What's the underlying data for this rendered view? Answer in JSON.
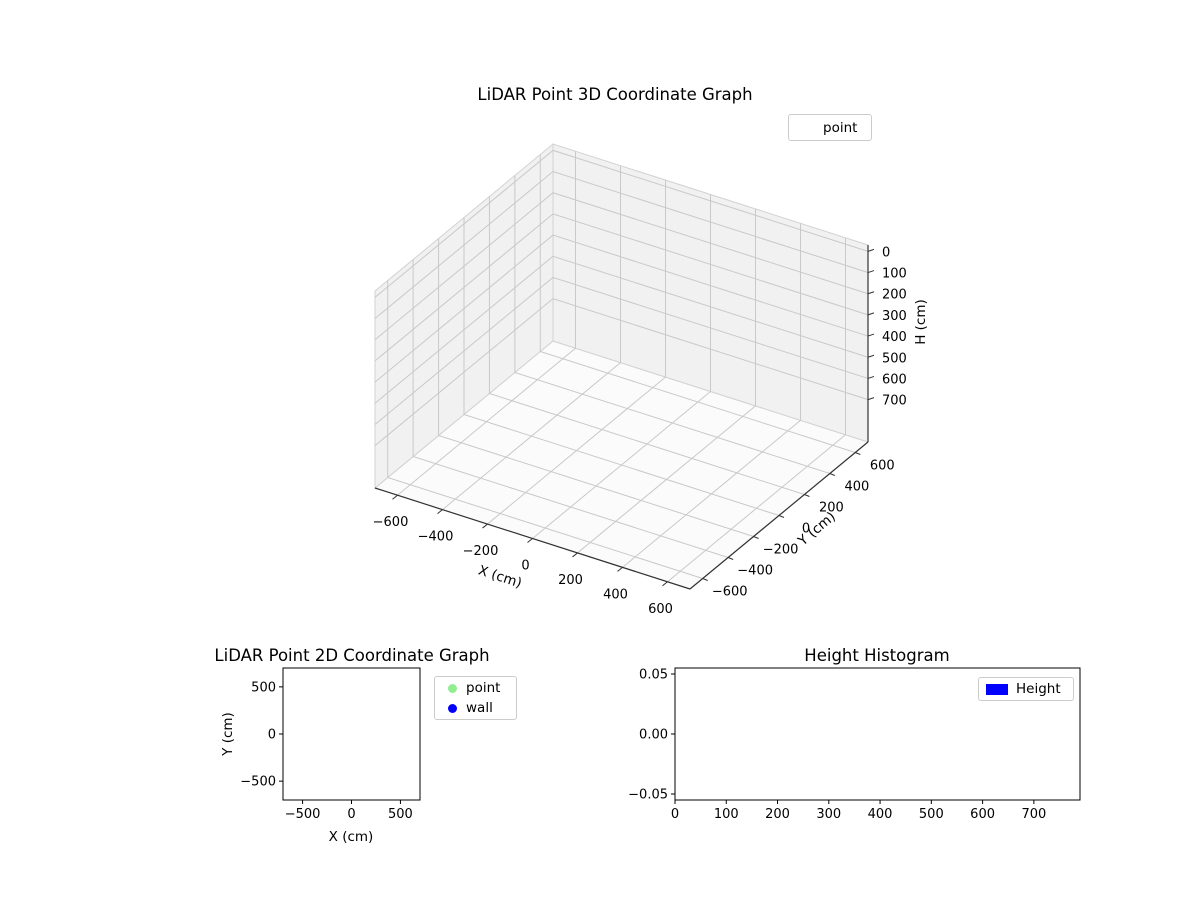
{
  "figure": {
    "background": "#ffffff",
    "grid_color": "#c9c9c9",
    "pane_color": "#f1f1f1",
    "floor_color": "#fbfbfb",
    "axis_color": "#333333"
  },
  "chart_data": [
    {
      "id": "plot3d",
      "type": "scatter3d",
      "title": "LiDAR Point 3D Coordinate Graph",
      "xlabel": "X (cm)",
      "ylabel": "Y (cm)",
      "zlabel": "H (cm)",
      "xlim": [
        -700,
        700
      ],
      "ylim": [
        -700,
        700
      ],
      "zlim": [
        -30,
        900
      ],
      "z_axis_inverted": true,
      "grid": true,
      "xticks": {
        "values": [
          -600,
          -400,
          -200,
          0,
          200,
          400,
          600
        ],
        "labels": [
          "−600",
          "−400",
          "−200",
          "0",
          "200",
          "400",
          "600"
        ]
      },
      "yticks": {
        "values": [
          -600,
          -400,
          -200,
          0,
          200,
          400,
          600
        ],
        "labels": [
          "−600",
          "−400",
          "−200",
          "0",
          "200",
          "400",
          "600"
        ]
      },
      "zticks": {
        "values": [
          0,
          100,
          200,
          300,
          400,
          500,
          600,
          700
        ],
        "labels": [
          "0",
          "100",
          "200",
          "300",
          "400",
          "500",
          "600",
          "700"
        ]
      },
      "legend": {
        "position": "upper-right",
        "entries": [
          {
            "label": "point",
            "marker": "none"
          }
        ]
      },
      "points": []
    },
    {
      "id": "plot2d",
      "type": "scatter",
      "title": "LiDAR Point 2D Coordinate Graph",
      "xlabel": "X (cm)",
      "ylabel": "Y (cm)",
      "xlim": [
        -700,
        700
      ],
      "ylim": [
        -700,
        700
      ],
      "grid": false,
      "xticks": {
        "values": [
          -500,
          0,
          500
        ],
        "labels": [
          "−500",
          "0",
          "500"
        ]
      },
      "yticks": {
        "values": [
          -500,
          0,
          500
        ],
        "labels": [
          "−500",
          "0",
          "500"
        ]
      },
      "legend": {
        "position": "outside-right",
        "entries": [
          {
            "label": "point",
            "marker": "circle",
            "color": "#90ee90"
          },
          {
            "label": "wall",
            "marker": "circle",
            "color": "#0000ff"
          }
        ]
      },
      "points": []
    },
    {
      "id": "histogram",
      "type": "bar",
      "title": "Height Histogram",
      "xlabel": "",
      "ylabel": "",
      "xlim": [
        0,
        790
      ],
      "ylim": [
        -0.055,
        0.055
      ],
      "grid": false,
      "xticks": {
        "values": [
          0,
          100,
          200,
          300,
          400,
          500,
          600,
          700
        ],
        "labels": [
          "0",
          "100",
          "200",
          "300",
          "400",
          "500",
          "600",
          "700"
        ]
      },
      "yticks": {
        "values": [
          -0.05,
          0,
          0.05
        ],
        "labels": [
          "−0.05",
          "0.00",
          "0.05"
        ]
      },
      "legend": {
        "position": "upper-right",
        "entries": [
          {
            "label": "Height",
            "marker": "rect",
            "color": "#0000ff"
          }
        ]
      },
      "values": []
    }
  ]
}
